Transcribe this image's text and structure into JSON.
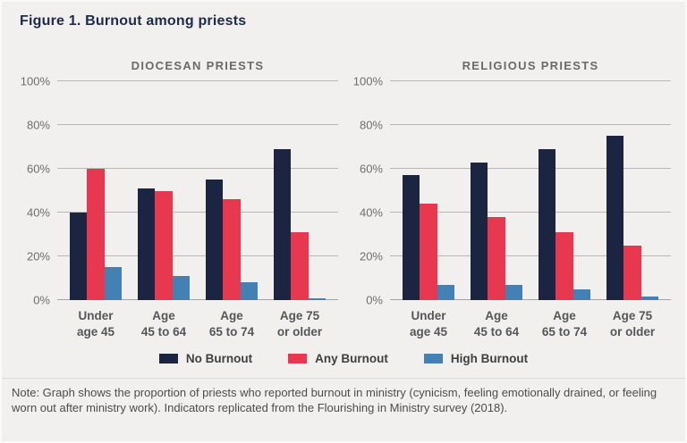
{
  "page": {
    "title": "Figure 1. Burnout among priests",
    "note": "Note: Graph shows the proportion of priests who reported burnout in ministry (cynicism, feeling emotionally drained, or feeling worn out after ministry work). Indicators replicated from the Flourishing in Ministry survey (2018)."
  },
  "colors": {
    "background": "#f1f0ee",
    "title_text": "#1d2b4a",
    "no_burnout": "#1b2440",
    "any_burnout": "#e8384f",
    "high_burnout": "#4380b4",
    "gridline": "#b9b6b3",
    "axis_text": "#6e6e6e",
    "category_text": "#55565a",
    "note_text": "#4c4c4c"
  },
  "legend": [
    {
      "label": "No Burnout",
      "color": "#1b2440"
    },
    {
      "label": "Any Burnout",
      "color": "#e8384f"
    },
    {
      "label": "High Burnout",
      "color": "#4380b4"
    }
  ],
  "chart_data": [
    {
      "type": "bar",
      "title": "DIOCESAN PRIESTS",
      "categories": [
        "Under\nage 45",
        "Age\n45 to 64",
        "Age\n65 to 74",
        "Age 75\nor older"
      ],
      "series": [
        {
          "name": "No Burnout",
          "color": "#1b2440",
          "values": [
            40,
            51,
            55,
            69
          ]
        },
        {
          "name": "Any Burnout",
          "color": "#e8384f",
          "values": [
            60,
            50,
            46,
            31
          ]
        },
        {
          "name": "High Burnout",
          "color": "#4380b4",
          "values": [
            15,
            11,
            8,
            1
          ]
        }
      ],
      "ylabel": "",
      "xlabel": "",
      "ylim": [
        0,
        100
      ],
      "yticks": [
        {
          "label": "0%",
          "value": 0
        },
        {
          "label": "20%",
          "value": 20
        },
        {
          "label": "40%",
          "value": 40
        },
        {
          "label": "60%",
          "value": 60
        },
        {
          "label": "80%",
          "value": 80
        },
        {
          "label": "100%",
          "value": 100
        }
      ],
      "grid": true,
      "legend_position": "bottom-shared"
    },
    {
      "type": "bar",
      "title": "RELIGIOUS PRIESTS",
      "categories": [
        "Under\nage 45",
        "Age\n45 to 64",
        "Age\n65 to 74",
        "Age 75\nor older"
      ],
      "series": [
        {
          "name": "No Burnout",
          "color": "#1b2440",
          "values": [
            57,
            63,
            69,
            75
          ]
        },
        {
          "name": "Any Burnout",
          "color": "#e8384f",
          "values": [
            44,
            38,
            31,
            25
          ]
        },
        {
          "name": "High Burnout",
          "color": "#4380b4",
          "values": [
            7,
            7,
            5,
            1.5
          ]
        }
      ],
      "ylabel": "",
      "xlabel": "",
      "ylim": [
        0,
        100
      ],
      "yticks": [
        {
          "label": "0%",
          "value": 0
        },
        {
          "label": "20%",
          "value": 20
        },
        {
          "label": "40%",
          "value": 40
        },
        {
          "label": "60%",
          "value": 60
        },
        {
          "label": "80%",
          "value": 80
        },
        {
          "label": "100%",
          "value": 100
        }
      ],
      "grid": true,
      "legend_position": "bottom-shared"
    }
  ]
}
